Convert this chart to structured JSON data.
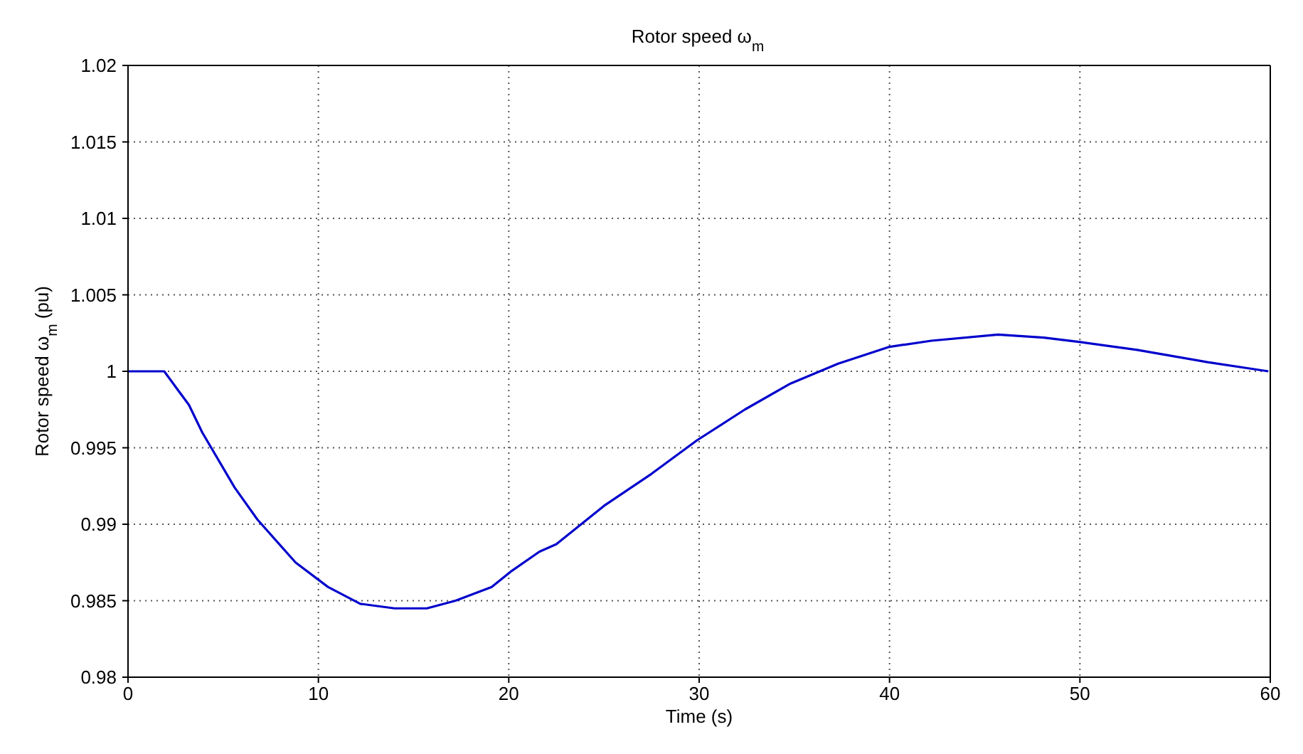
{
  "chart_data": {
    "type": "line",
    "title": "Rotor speed  ω$_{m}$",
    "xlabel": "Time (s)",
    "ylabel": "Rotor speed  ω$_{m}$  (pu)",
    "series": [
      {
        "color": "#0000cc",
        "x": [
          0,
          1.9,
          3.2,
          3.9,
          5.6,
          6.8,
          8.8,
          10.5,
          12.2,
          14.0,
          15.7,
          17.2,
          19.1,
          20.1,
          21.6,
          22.5,
          25.0,
          27.5,
          29.9,
          32.4,
          34.8,
          37.3,
          40.0,
          42.2,
          45.7,
          48.1,
          50.1,
          53.0,
          56.7,
          59.9
        ],
        "values": [
          1.0,
          1.0,
          0.9978,
          0.996,
          0.9924,
          0.9903,
          0.9875,
          0.9859,
          0.9848,
          0.9845,
          0.9845,
          0.985,
          0.9859,
          0.9869,
          0.9882,
          0.9887,
          0.9912,
          0.9933,
          0.9955,
          0.9975,
          0.9992,
          1.0005,
          1.0016,
          1.002,
          1.0024,
          1.0022,
          1.0019,
          1.0014,
          1.0006,
          1.0
        ]
      }
    ],
    "xlim": [
      0,
      60
    ],
    "xticks": [
      0,
      10,
      20,
      30,
      40,
      50,
      60
    ],
    "ylim": [
      0.98,
      1.02
    ],
    "yticks": [
      0.98,
      0.985,
      0.99,
      0.995,
      1,
      1.005,
      1.01,
      1.015,
      1.02
    ],
    "grid": true,
    "marker": "none",
    "line_style": "solid"
  }
}
